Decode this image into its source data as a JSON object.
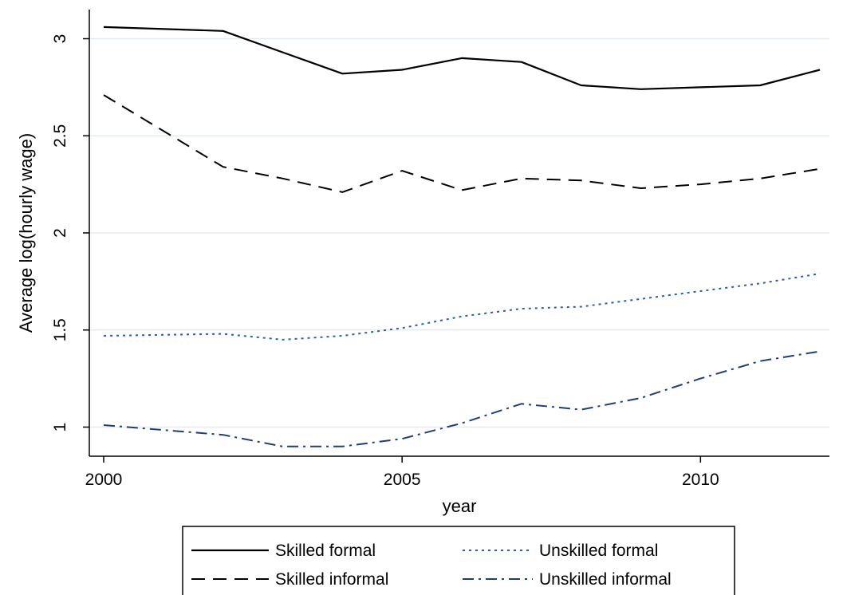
{
  "chart_data": {
    "type": "line",
    "xlabel": "year",
    "ylabel": "Average log(hourly wage)",
    "xlim": [
      2000,
      2012
    ],
    "ylim": [
      0.85,
      3.15
    ],
    "xticks": [
      2000,
      2005,
      2010
    ],
    "yticks": [
      1,
      1.5,
      2,
      2.5,
      3
    ],
    "ytick_labels": [
      "1",
      "1.5",
      "2",
      "2.5",
      "3"
    ],
    "grid": "horizontal",
    "legend_position": "bottom",
    "x": [
      2000,
      2002,
      2003,
      2004,
      2005,
      2006,
      2007,
      2008,
      2009,
      2010,
      2011,
      2012
    ],
    "series": [
      {
        "name": "Skilled formal",
        "style": "solid",
        "color": "#000000",
        "values": [
          3.06,
          3.04,
          2.93,
          2.82,
          2.84,
          2.9,
          2.88,
          2.76,
          2.74,
          2.75,
          2.76,
          2.84
        ]
      },
      {
        "name": "Skilled informal",
        "style": "dash",
        "color": "#000000",
        "values": [
          2.71,
          2.34,
          2.28,
          2.21,
          2.32,
          2.22,
          2.28,
          2.27,
          2.23,
          2.25,
          2.28,
          2.33
        ]
      },
      {
        "name": "Unskilled formal",
        "style": "dot",
        "color": "#2a5ea8",
        "values": [
          1.47,
          1.48,
          1.45,
          1.47,
          1.51,
          1.57,
          1.61,
          1.62,
          1.66,
          1.7,
          1.74,
          1.79
        ]
      },
      {
        "name": "Unskilled informal",
        "style": "dashdot",
        "color": "#1f3f73",
        "values": [
          1.01,
          0.96,
          0.9,
          0.9,
          0.94,
          1.02,
          1.12,
          1.09,
          1.15,
          1.25,
          1.34,
          1.39
        ]
      }
    ],
    "legend_order": [
      0,
      2,
      1,
      3
    ]
  }
}
